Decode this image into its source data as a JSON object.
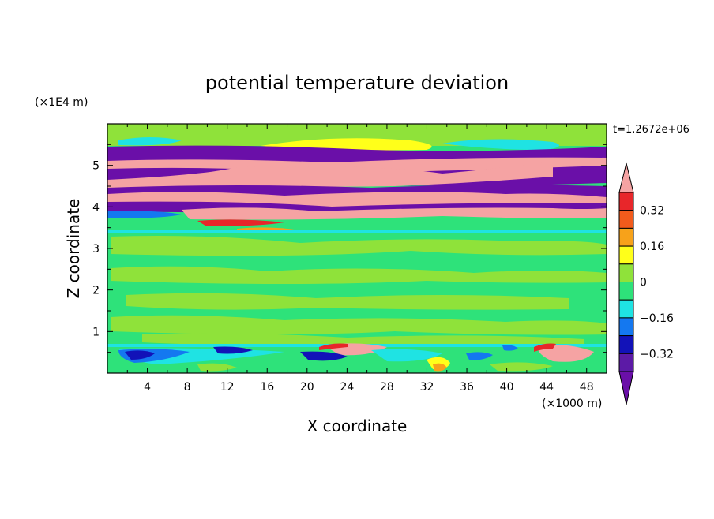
{
  "chart_data": {
    "type": "heatmap",
    "title": "potential temperature deviation",
    "xlabel": "X coordinate",
    "ylabel": "Z coordinate",
    "x_units": "(×1000 m)",
    "y_units": "(×1E4 m)",
    "time_label": "t=1.2672e+06",
    "xlim": [
      0,
      50
    ],
    "ylim": [
      0,
      6
    ],
    "x_ticks": [
      4,
      8,
      12,
      16,
      20,
      24,
      28,
      32,
      36,
      40,
      44,
      48
    ],
    "y_ticks": [
      1,
      2,
      3,
      4,
      5
    ],
    "colorbar": {
      "labels": [
        "0.32",
        "0.16",
        "0",
        "−0.16",
        "−0.32"
      ],
      "levels": [
        0.48,
        0.4,
        0.32,
        0.24,
        0.16,
        0.08,
        0,
        -0.08,
        -0.16,
        -0.24,
        -0.32,
        -0.4,
        -0.48
      ],
      "colors": [
        "#f5a3a3",
        "#e8262a",
        "#f25b1c",
        "#f7a21a",
        "#ffff1a",
        "#8fe23a",
        "#2ee27a",
        "#1fe3e3",
        "#1478f0",
        "#1212b8",
        "#5c1aa6",
        "#6a0fa8"
      ],
      "extend": "both"
    },
    "bands": [
      {
        "z": [
          5.6,
          6.0
        ],
        "value": 0.05,
        "feature": "upper-green"
      },
      {
        "z": [
          5.2,
          5.5
        ],
        "value": -0.45,
        "feature": "purple-layer"
      },
      {
        "z": [
          4.9,
          5.2
        ],
        "value": 0.45,
        "feature": "pink-layer"
      },
      {
        "z": [
          4.6,
          4.9
        ],
        "value": -0.45,
        "feature": "purple-layer"
      },
      {
        "z": [
          4.3,
          4.6
        ],
        "value": 0.45,
        "feature": "pink-layer"
      },
      {
        "z": [
          4.0,
          4.3
        ],
        "value": -0.45,
        "feature": "purple-layer"
      },
      {
        "z": [
          3.7,
          4.0
        ],
        "value": 0.45,
        "feature": "pink-layer"
      },
      {
        "z": [
          0.7,
          3.7
        ],
        "value": 0.02,
        "feature": "mid-green"
      },
      {
        "z": [
          0.0,
          0.7
        ],
        "value": -0.2,
        "feature": "lower-mixed"
      }
    ]
  }
}
